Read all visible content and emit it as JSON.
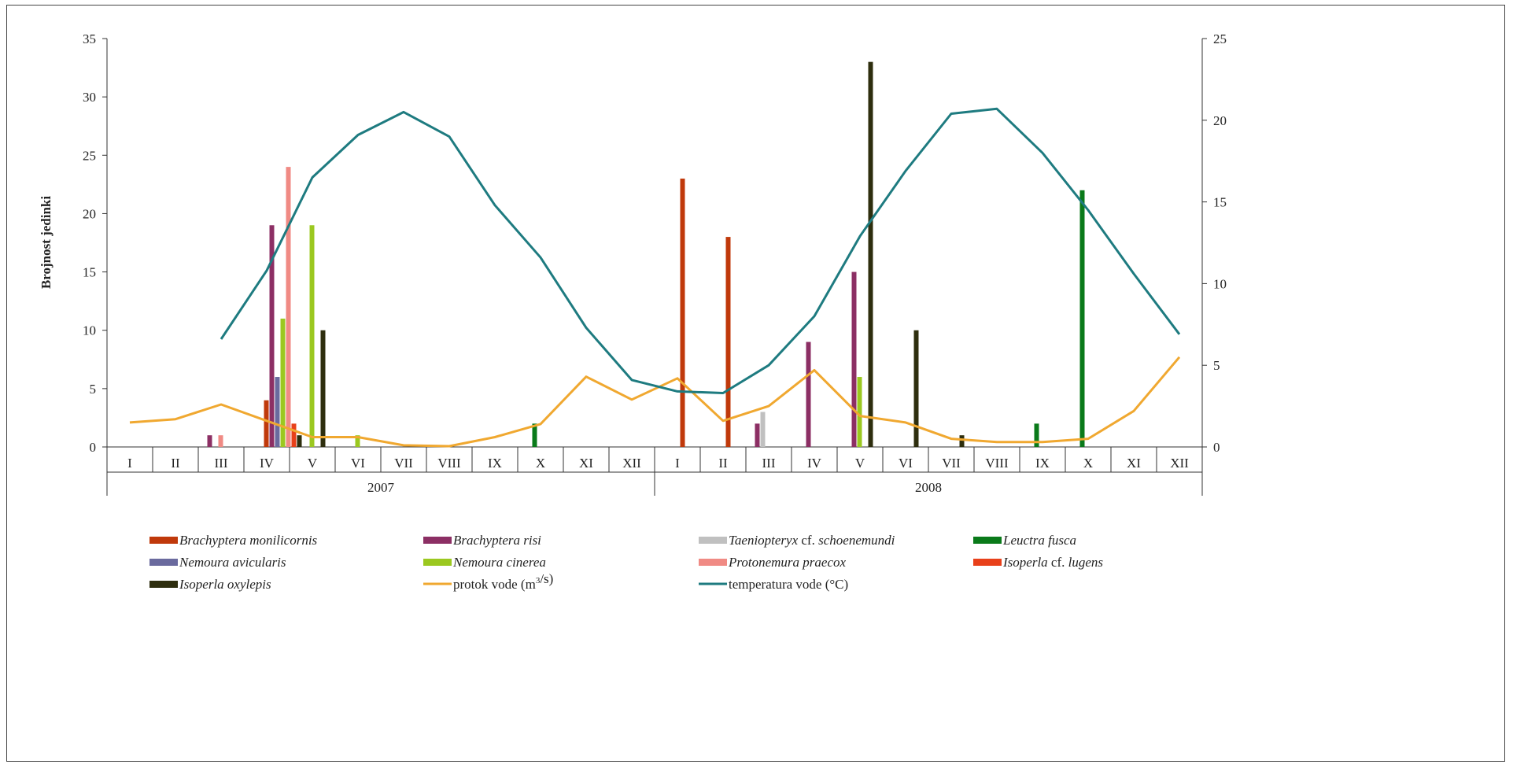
{
  "chart_data": {
    "type": "bar+line",
    "ylabel": "Brojnost jedinki",
    "ylim_left": [
      0,
      35
    ],
    "yticks_left": [
      "0",
      "5",
      "10",
      "15",
      "20",
      "25",
      "30",
      "35"
    ],
    "ylim_right": [
      0,
      25
    ],
    "yticks_right": [
      "0",
      "5",
      "10",
      "15",
      "20",
      "25"
    ],
    "years": [
      "2007",
      "2008"
    ],
    "months": [
      "I",
      "II",
      "III",
      "IV",
      "V",
      "VI",
      "VII",
      "VIII",
      "IX",
      "X",
      "XI",
      "XII",
      "I",
      "II",
      "III",
      "IV",
      "V",
      "VI",
      "VII",
      "VIII",
      "IX",
      "X",
      "XI",
      "XII"
    ],
    "bar_series": [
      {
        "legend": [
          {
            "t": "Brachyptera monilicornis",
            "i": true
          }
        ],
        "color": "#C0390B",
        "points": [
          {
            "m": 3,
            "s": 0,
            "v": 4
          },
          {
            "m": 12,
            "s": 1,
            "v": 23
          },
          {
            "m": 13,
            "s": 1,
            "v": 18
          }
        ]
      },
      {
        "legend": [
          {
            "t": "Brachyptera risi",
            "i": true
          }
        ],
        "color": "#8C2F64",
        "points": [
          {
            "m": 2,
            "s": -2,
            "v": 1
          },
          {
            "m": 3,
            "s": 1,
            "v": 19
          },
          {
            "m": 14,
            "s": -2,
            "v": 2
          },
          {
            "m": 15,
            "s": -1,
            "v": 9
          },
          {
            "m": 16,
            "s": -1,
            "v": 15
          }
        ]
      },
      {
        "legend": [
          {
            "t": "Taeniopteryx",
            "i": true
          },
          {
            "t": " cf. ",
            "i": false
          },
          {
            "t": "schoenemundi",
            "i": true
          }
        ],
        "color": "#C0C0C0",
        "points": [
          {
            "m": 14,
            "s": -1,
            "v": 3
          }
        ]
      },
      {
        "legend": [
          {
            "t": "Leuctra fusca",
            "i": true
          }
        ],
        "color": "#0A7A1A",
        "points": [
          {
            "m": 9,
            "s": -1,
            "v": 2
          },
          {
            "m": 20,
            "s": -1,
            "v": 2
          },
          {
            "m": 21,
            "s": -1,
            "v": 22
          }
        ]
      },
      {
        "legend": [
          {
            "t": "Nemoura avicularis",
            "i": true
          }
        ],
        "color": "#6A6A9E",
        "points": [
          {
            "m": 3,
            "s": 2,
            "v": 6
          }
        ]
      },
      {
        "legend": [
          {
            "t": "Nemoura cinerea",
            "i": true
          }
        ],
        "color": "#9BC820",
        "points": [
          {
            "m": 3,
            "s": 3,
            "v": 11
          },
          {
            "m": 4,
            "s": 0,
            "v": 19
          },
          {
            "m": 5,
            "s": 0,
            "v": 1
          },
          {
            "m": 16,
            "s": 0,
            "v": 6
          }
        ]
      },
      {
        "legend": [
          {
            "t": "Protonemura praecox",
            "i": true
          }
        ],
        "color": "#F08A84",
        "points": [
          {
            "m": 2,
            "s": 0,
            "v": 1
          },
          {
            "m": 3,
            "s": 4,
            "v": 24
          }
        ]
      },
      {
        "legend": [
          {
            "t": "Isoperla",
            "i": true
          },
          {
            "t": " cf. ",
            "i": false
          },
          {
            "t": "lugens",
            "i": true
          }
        ],
        "color": "#E8401A",
        "points": [
          {
            "m": 3,
            "s": 5,
            "v": 2
          }
        ]
      },
      {
        "legend": [
          {
            "t": "Isoperla oxylepis",
            "i": true
          }
        ],
        "color": "#2E2E0E",
        "points": [
          {
            "m": 3,
            "s": 6,
            "v": 1
          },
          {
            "m": 4,
            "s": 2,
            "v": 10
          },
          {
            "m": 16,
            "s": 2,
            "v": 33
          },
          {
            "m": 17,
            "s": 2,
            "v": 10
          },
          {
            "m": 18,
            "s": 2,
            "v": 1
          }
        ]
      }
    ],
    "line_series": [
      {
        "legend": [
          {
            "t": "protok vode (m",
            "i": false
          },
          {
            "t": "3",
            "i": false,
            "sup": true
          },
          {
            "t": "/s)",
            "i": false
          }
        ],
        "color": "#F0A830",
        "axis": "right",
        "values": [
          1.5,
          1.7,
          2.6,
          1.6,
          0.6,
          0.6,
          0.1,
          0.05,
          0.6,
          1.4,
          4.3,
          2.9,
          4.2,
          1.6,
          2.5,
          4.7,
          1.9,
          1.5,
          0.5,
          0.3,
          0.3,
          0.5,
          2.2,
          5.5
        ]
      },
      {
        "legend": [
          {
            "t": "temperatura vode (°C)",
            "i": false
          }
        ],
        "color": "#1E7B80",
        "axis": "right",
        "values": [
          null,
          null,
          6.6,
          10.8,
          16.5,
          19.1,
          20.5,
          19.0,
          14.8,
          11.6,
          7.3,
          4.1,
          3.4,
          3.3,
          5.0,
          8.0,
          12.9,
          16.9,
          20.4,
          20.7,
          18.0,
          14.5,
          10.6,
          6.9
        ]
      }
    ]
  }
}
